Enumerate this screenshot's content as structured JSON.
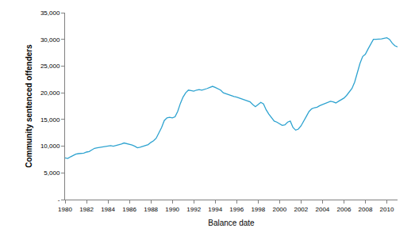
{
  "chart_data": {
    "type": "line",
    "x_label": "Balance date",
    "y_label": "Community sentenced offenders",
    "color": "#2ea3d0",
    "grid": false,
    "x": [
      1980,
      1980.25,
      1980.5,
      1980.75,
      1981,
      1981.25,
      1981.5,
      1981.75,
      1982,
      1982.25,
      1982.5,
      1982.75,
      1983,
      1983.25,
      1983.5,
      1983.75,
      1984,
      1984.25,
      1984.5,
      1984.75,
      1985,
      1985.25,
      1985.5,
      1985.75,
      1986,
      1986.25,
      1986.5,
      1986.75,
      1987,
      1987.25,
      1987.5,
      1987.75,
      1988,
      1988.25,
      1988.5,
      1988.75,
      1989,
      1989.25,
      1989.5,
      1989.75,
      1990,
      1990.25,
      1990.5,
      1990.75,
      1991,
      1991.25,
      1991.5,
      1991.75,
      1992,
      1992.25,
      1992.5,
      1992.75,
      1993,
      1993.25,
      1993.5,
      1993.75,
      1994,
      1994.25,
      1994.5,
      1994.75,
      1995,
      1995.25,
      1995.5,
      1995.75,
      1996,
      1996.25,
      1996.5,
      1996.75,
      1997,
      1997.25,
      1997.5,
      1997.75,
      1998,
      1998.25,
      1998.5,
      1998.75,
      1999,
      1999.25,
      1999.5,
      1999.75,
      2000,
      2000.25,
      2000.5,
      2000.75,
      2001,
      2001.25,
      2001.5,
      2001.75,
      2002,
      2002.25,
      2002.5,
      2002.75,
      2003,
      2003.25,
      2003.5,
      2003.75,
      2004,
      2004.25,
      2004.5,
      2004.75,
      2005,
      2005.25,
      2005.5,
      2005.75,
      2006,
      2006.25,
      2006.5,
      2006.75,
      2007,
      2007.25,
      2007.5,
      2007.75,
      2008,
      2008.25,
      2008.5,
      2008.75,
      2009,
      2009.25,
      2009.5,
      2009.75,
      2010,
      2010.25,
      2010.5,
      2010.75,
      2011
    ],
    "values": [
      7800,
      7700,
      8000,
      8300,
      8500,
      8600,
      8600,
      8700,
      8900,
      9000,
      9300,
      9600,
      9700,
      9800,
      9900,
      10000,
      10000,
      10100,
      10000,
      10100,
      10200,
      10400,
      10600,
      10500,
      10300,
      10200,
      10000,
      9700,
      9800,
      10000,
      10200,
      10300,
      10700,
      11000,
      11500,
      12500,
      13500,
      14800,
      15300,
      15400,
      15300,
      15500,
      16500,
      18000,
      19200,
      20000,
      20500,
      20400,
      20300,
      20500,
      20600,
      20500,
      20600,
      20800,
      21000,
      21200,
      21000,
      20800,
      20500,
      20000,
      19800,
      19600,
      19500,
      19300,
      19200,
      19000,
      18800,
      18600,
      18500,
      18300,
      17800,
      17400,
      17800,
      18200,
      17900,
      16800,
      16000,
      15300,
      14700,
      14500,
      14200,
      13900,
      14000,
      14500,
      14700,
      13500,
      13000,
      13200,
      13800,
      14800,
      15600,
      16500,
      17000,
      17200,
      17300,
      17600,
      17800,
      18000,
      18200,
      18400,
      18300,
      18100,
      18400,
      18700,
      19000,
      19500,
      20200,
      20800,
      22000,
      23800,
      25500,
      26800,
      27200,
      28200,
      29200,
      30000,
      30000,
      30000,
      30100,
      30200,
      30300,
      30000,
      29300,
      28800,
      28600
    ],
    "xlim": [
      1980,
      2011
    ],
    "xticks": [
      1980,
      1982,
      1984,
      1986,
      1988,
      1990,
      1992,
      1994,
      1996,
      1998,
      2000,
      2002,
      2004,
      2006,
      2008,
      2010
    ],
    "ylim": [
      0,
      35000
    ],
    "yticks": [
      {
        "value": 0,
        "label": "-"
      },
      {
        "value": 5000,
        "label": "5,000"
      },
      {
        "value": 10000,
        "label": "10,000"
      },
      {
        "value": 15000,
        "label": "15,000"
      },
      {
        "value": 20000,
        "label": "20,000"
      },
      {
        "value": 25000,
        "label": "25,000"
      },
      {
        "value": 30000,
        "label": "30,000"
      },
      {
        "value": 35000,
        "label": "35,000"
      }
    ]
  }
}
